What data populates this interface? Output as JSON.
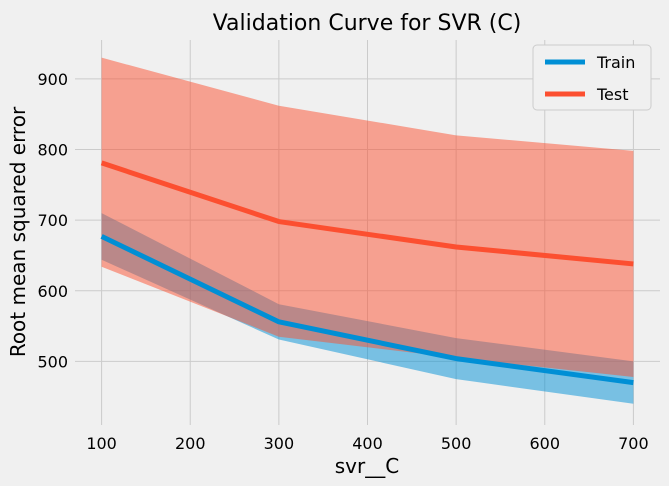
{
  "chart_data": {
    "type": "line",
    "title": "Validation Curve for SVR (C)",
    "xlabel": "svr__C",
    "ylabel": "Root mean squared error",
    "x": [
      100,
      300,
      500,
      700
    ],
    "xlim": [
      70,
      730
    ],
    "ylim": [
      410,
      955
    ],
    "xticks": [
      100,
      200,
      300,
      400,
      500,
      600,
      700
    ],
    "yticks": [
      500,
      600,
      700,
      800,
      900
    ],
    "grid": true,
    "legend_position": "top-right",
    "series": [
      {
        "name": "Train",
        "color": "#008fd5",
        "band_color": "#008fd5",
        "values": [
          677,
          556,
          504,
          470
        ],
        "band_lower": [
          644,
          531,
          475,
          440
        ],
        "band_upper": [
          710,
          581,
          533,
          500
        ]
      },
      {
        "name": "Test",
        "color": "#fc4f30",
        "band_color": "#fc4f30",
        "values": [
          781,
          698,
          662,
          638
        ],
        "band_lower": [
          634,
          535,
          505,
          478
        ],
        "band_upper": [
          930,
          862,
          820,
          798
        ]
      }
    ]
  }
}
